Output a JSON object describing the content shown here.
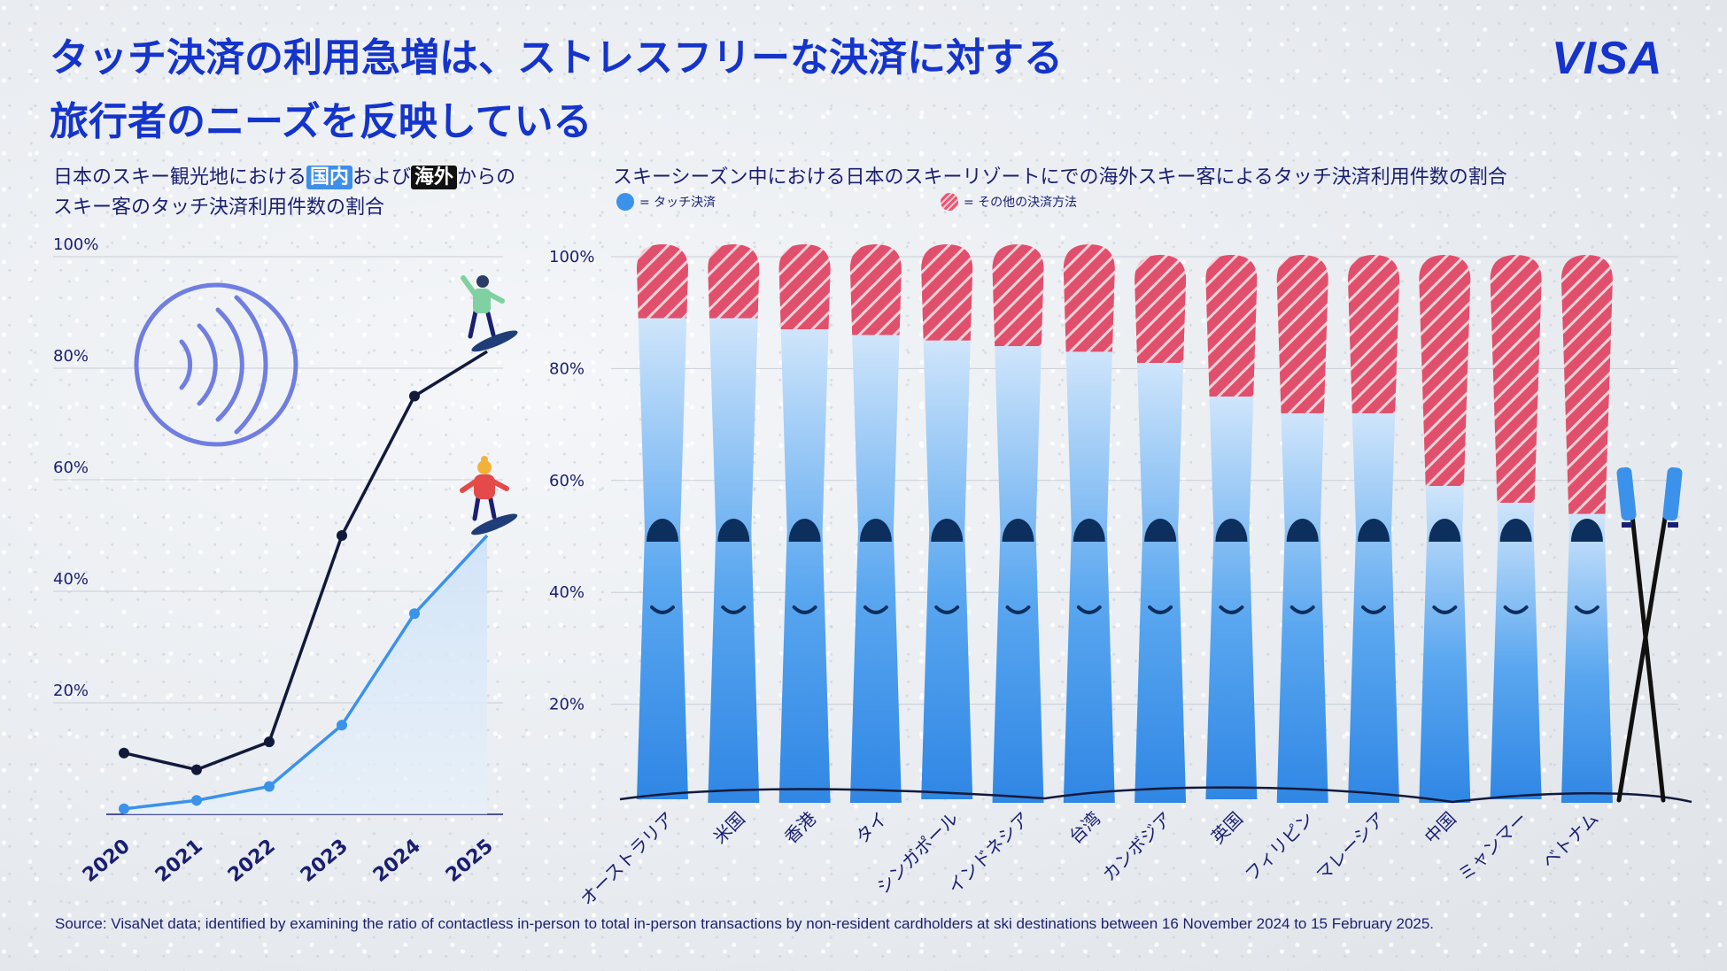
{
  "title": {
    "line1": "タッチ決済の利用急増は、ストレスフリーな決済に対する",
    "line2": "旅行者のニーズを反映している"
  },
  "logo": "VISA",
  "left_subtitle": {
    "part1": "日本のスキー観光地における",
    "domestic": "国内",
    "part2": "および",
    "international": "海外",
    "part3": "からの",
    "line2": "スキー客のタッチ決済利用件数の割合"
  },
  "right_subtitle": "スキーシーズン中における日本のスキーリゾートにでの海外スキー客によるタッチ決済利用件数の割合",
  "legend": {
    "touch": "= タッチ決済",
    "other": "= その他の決済方法"
  },
  "source": "Source: VisaNet data; identified by examining the ratio of contactless in-person to total in-person transactions by non-resident cardholders at ski destinations between 16 November 2024 to 15 February 2025.",
  "colors": {
    "title": "#1434cb",
    "navy": "#1a1f71",
    "domestic_line": "#3b92ea",
    "international_line": "#121a3c",
    "touch": "#3b92ea",
    "other": "#e85470",
    "contactless_icon": "#6f7ee0"
  },
  "icons": [
    "contactless-icon",
    "snowboarder-green-icon",
    "snowboarder-red-icon",
    "ski-poles-icon"
  ],
  "chart_data": [
    {
      "type": "line",
      "x": [
        "2020",
        "2021",
        "2022",
        "2023",
        "2024",
        "2025"
      ],
      "ylim": [
        0,
        100
      ],
      "yticks": [
        "20%",
        "40%",
        "60%",
        "80%",
        "100%"
      ],
      "series": [
        {
          "name": "海外",
          "values": [
            11,
            8,
            13,
            50,
            75,
            83
          ]
        },
        {
          "name": "国内",
          "values": [
            1,
            2.5,
            5,
            16,
            36,
            50
          ]
        }
      ]
    },
    {
      "type": "bar",
      "stacked": true,
      "ylim": [
        0,
        100
      ],
      "yticks": [
        "20%",
        "40%",
        "60%",
        "80%",
        "100%"
      ],
      "categories": [
        "オーストラリア",
        "米国",
        "香港",
        "タイ",
        "シンガポール",
        "インドネシア",
        "台湾",
        "カンボジア",
        "英国",
        "フィリピン",
        "マレーシア",
        "中国",
        "ミャンマー",
        "ベトナム"
      ],
      "series": [
        {
          "name": "= タッチ決済",
          "values": [
            89,
            89,
            87,
            86,
            85,
            84,
            83,
            81,
            75,
            72,
            72,
            59,
            56,
            54
          ]
        },
        {
          "name": "= その他の決済方法",
          "values": [
            11,
            11,
            13,
            14,
            15,
            16,
            17,
            19,
            25,
            28,
            28,
            41,
            44,
            46
          ]
        }
      ]
    }
  ]
}
